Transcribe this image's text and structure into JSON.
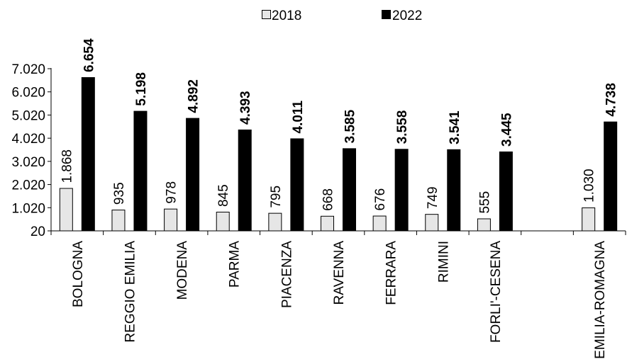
{
  "chart_data": {
    "type": "bar",
    "categories": [
      "BOLOGNA",
      "REGGIO EMILIA",
      "MODENA",
      "PARMA",
      "PIACENZA",
      "RAVENNA",
      "FERRARA",
      "RIMINI",
      "FORLI'-CESENA",
      "",
      "EMILIA-ROMAGNA"
    ],
    "series": [
      {
        "name": "2018",
        "color": "#e6e6e6",
        "values": [
          1868,
          935,
          978,
          845,
          795,
          668,
          676,
          749,
          555,
          null,
          1030
        ],
        "labels": [
          "1.868",
          "935",
          "978",
          "845",
          "795",
          "668",
          "676",
          "749",
          "555",
          "",
          "1.030"
        ]
      },
      {
        "name": "2022",
        "color": "#000000",
        "values": [
          6654,
          5198,
          4892,
          4393,
          4011,
          3585,
          3558,
          3541,
          3445,
          null,
          4738
        ],
        "labels": [
          "6.654",
          "5.198",
          "4.892",
          "4.393",
          "4.011",
          "3.585",
          "3.558",
          "3.541",
          "3.445",
          "",
          "4.738"
        ]
      }
    ],
    "yticks": [
      20,
      1020,
      2020,
      3020,
      4020,
      5020,
      6020,
      7020
    ],
    "ytick_labels": [
      "20",
      "1.020",
      "2.020",
      "3.020",
      "4.020",
      "5.020",
      "6.020",
      "7.020"
    ],
    "ylim": [
      20,
      7020
    ],
    "title": "",
    "xlabel": "",
    "ylabel": "",
    "grid": false,
    "legend": "top-center"
  }
}
